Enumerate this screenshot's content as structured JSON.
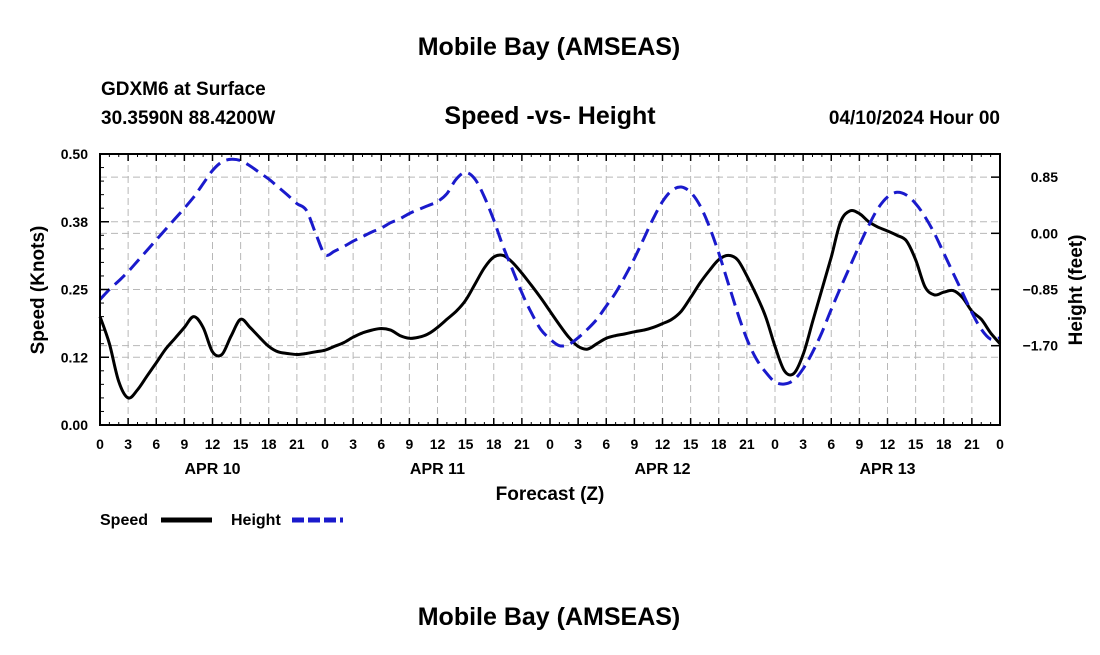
{
  "page": {
    "top_title": "Mobile Bay (AMSEAS)",
    "station_line1": "GDXM6 at Surface",
    "station_line2": "30.3590N  88.4200W",
    "datetime": "04/10/2024 Hour 00",
    "bottom_title": "Mobile Bay (AMSEAS)"
  },
  "legend": {
    "speed_label": "Speed",
    "height_label": "Height",
    "speed_color": "#000000",
    "height_color": "#1a1acc"
  },
  "chart_data": {
    "type": "line",
    "title": "Speed -vs- Height",
    "xlabel": "Forecast (Z)",
    "ylabel": "Speed (Knots)",
    "y2label": "Height (feet)",
    "xlim": [
      0,
      96
    ],
    "ylim": [
      0,
      0.5
    ],
    "y2lim": [
      -2.9,
      1.2
    ],
    "grid": true,
    "x_ticks": [
      0,
      3,
      6,
      9,
      12,
      15,
      18,
      21,
      24,
      27,
      30,
      33,
      36,
      39,
      42,
      45,
      48,
      51,
      54,
      57,
      60,
      63,
      66,
      69,
      72,
      75,
      78,
      81,
      84,
      87,
      90,
      93,
      96
    ],
    "x_tick_labels": [
      "0",
      "3",
      "6",
      "9",
      "12",
      "15",
      "18",
      "21",
      "0",
      "3",
      "6",
      "9",
      "12",
      "15",
      "18",
      "21",
      "0",
      "3",
      "6",
      "9",
      "12",
      "15",
      "18",
      "21",
      "0",
      "3",
      "6",
      "9",
      "12",
      "15",
      "18",
      "21",
      "0"
    ],
    "day_labels": [
      {
        "hour": 12,
        "label": "APR 10"
      },
      {
        "hour": 36,
        "label": "APR 11"
      },
      {
        "hour": 60,
        "label": "APR 12"
      },
      {
        "hour": 84,
        "label": "APR 13"
      }
    ],
    "y_ticks": [
      0.0,
      0.125,
      0.25,
      0.375,
      0.5
    ],
    "y_tick_labels": [
      "0.00",
      "0.12",
      "0.25",
      "0.38",
      "0.50"
    ],
    "y2_ticks": [
      0.85,
      0.0,
      -0.85,
      -1.7
    ],
    "y2_tick_labels": [
      "0.85",
      "0.00",
      "−0.85",
      "−1.70"
    ],
    "legend_position": "bottom-left",
    "series": [
      {
        "name": "Speed",
        "axis": "left",
        "style": "solid",
        "color": "#000000",
        "x": [
          0,
          1,
          2,
          3,
          4,
          5,
          6,
          7,
          8,
          9,
          10,
          11,
          12,
          13,
          14,
          15,
          16,
          17,
          18,
          19,
          20,
          21,
          22,
          23,
          24,
          25,
          26,
          27,
          28,
          29,
          30,
          31,
          32,
          33,
          34,
          35,
          36,
          37,
          38,
          39,
          40,
          41,
          42,
          43,
          44,
          45,
          46,
          47,
          48,
          49,
          50,
          51,
          52,
          53,
          54,
          55,
          56,
          57,
          58,
          59,
          60,
          61,
          62,
          63,
          64,
          65,
          66,
          67,
          68,
          69,
          70,
          71,
          72,
          73,
          74,
          75,
          76,
          77,
          78,
          79,
          80,
          81,
          82,
          83,
          84,
          85,
          86,
          87,
          88,
          89,
          90,
          91,
          92,
          93,
          94,
          95,
          96
        ],
        "y": [
          0.2,
          0.15,
          0.08,
          0.05,
          0.065,
          0.09,
          0.115,
          0.14,
          0.16,
          0.18,
          0.2,
          0.18,
          0.135,
          0.13,
          0.165,
          0.195,
          0.18,
          0.162,
          0.145,
          0.135,
          0.132,
          0.13,
          0.132,
          0.135,
          0.138,
          0.145,
          0.152,
          0.162,
          0.17,
          0.175,
          0.178,
          0.175,
          0.165,
          0.16,
          0.162,
          0.168,
          0.18,
          0.195,
          0.21,
          0.23,
          0.26,
          0.29,
          0.31,
          0.313,
          0.3,
          0.28,
          0.258,
          0.235,
          0.21,
          0.185,
          0.162,
          0.145,
          0.14,
          0.15,
          0.16,
          0.165,
          0.168,
          0.172,
          0.175,
          0.18,
          0.187,
          0.195,
          0.21,
          0.235,
          0.262,
          0.285,
          0.305,
          0.313,
          0.305,
          0.275,
          0.24,
          0.2,
          0.145,
          0.1,
          0.095,
          0.13,
          0.19,
          0.25,
          0.31,
          0.375,
          0.395,
          0.39,
          0.375,
          0.365,
          0.358,
          0.35,
          0.34,
          0.305,
          0.255,
          0.24,
          0.245,
          0.248,
          0.235,
          0.21,
          0.195,
          0.17,
          0.15
        ]
      },
      {
        "name": "Height",
        "axis": "right",
        "style": "dashed",
        "color": "#1a1acc",
        "x": [
          0,
          1,
          2,
          3,
          4,
          5,
          6,
          7,
          8,
          9,
          10,
          11,
          12,
          13,
          14,
          15,
          16,
          17,
          18,
          19,
          20,
          21,
          22,
          23,
          24,
          25,
          26,
          27,
          28,
          29,
          30,
          31,
          32,
          33,
          34,
          35,
          36,
          37,
          38,
          39,
          40,
          41,
          42,
          43,
          44,
          45,
          46,
          47,
          48,
          49,
          50,
          51,
          52,
          53,
          54,
          55,
          56,
          57,
          58,
          59,
          60,
          61,
          62,
          63,
          64,
          65,
          66,
          67,
          68,
          69,
          70,
          71,
          72,
          73,
          74,
          75,
          76,
          77,
          78,
          79,
          80,
          81,
          82,
          83,
          84,
          85,
          86,
          87,
          88,
          89,
          90,
          91,
          92,
          93,
          94,
          95,
          96
        ],
        "y": [
          -1.0,
          -0.85,
          -0.72,
          -0.58,
          -0.42,
          -0.26,
          -0.1,
          0.06,
          0.22,
          0.38,
          0.55,
          0.75,
          0.95,
          1.08,
          1.12,
          1.1,
          1.02,
          0.92,
          0.82,
          0.7,
          0.58,
          0.45,
          0.35,
          0.0,
          -0.32,
          -0.27,
          -0.2,
          -0.12,
          -0.05,
          0.02,
          0.08,
          0.16,
          0.22,
          0.3,
          0.36,
          0.42,
          0.48,
          0.6,
          0.82,
          0.92,
          0.82,
          0.55,
          0.2,
          -0.2,
          -0.55,
          -0.9,
          -1.2,
          -1.45,
          -1.6,
          -1.7,
          -1.68,
          -1.58,
          -1.45,
          -1.3,
          -1.1,
          -0.9,
          -0.65,
          -0.38,
          -0.08,
          0.22,
          0.48,
          0.65,
          0.7,
          0.62,
          0.42,
          0.1,
          -0.3,
          -0.75,
          -1.2,
          -1.6,
          -1.9,
          -2.1,
          -2.25,
          -2.28,
          -2.22,
          -2.05,
          -1.8,
          -1.5,
          -1.15,
          -0.82,
          -0.5,
          -0.18,
          0.12,
          0.38,
          0.55,
          0.62,
          0.58,
          0.45,
          0.25,
          0.0,
          -0.3,
          -0.6,
          -0.9,
          -1.2,
          -1.45,
          -1.6,
          -1.58
        ]
      }
    ]
  }
}
